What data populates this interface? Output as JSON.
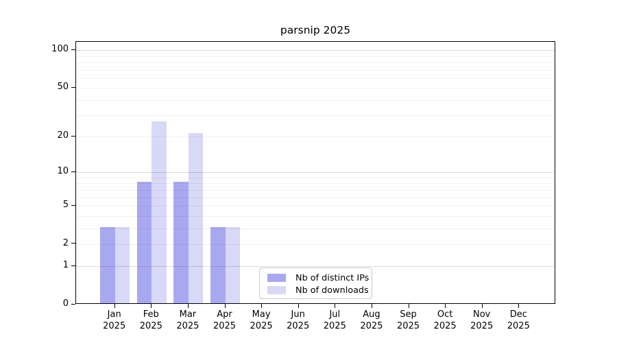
{
  "title": "parsnip 2025",
  "colors": {
    "distinct_ips": "#a8a8f1",
    "downloads": "#d8d8f7",
    "axis": "#000000",
    "legend_border": "#c8c8c8",
    "background": "#ffffff"
  },
  "chart_data": {
    "type": "bar",
    "title": "parsnip 2025",
    "categories": [
      "Jan",
      "Feb",
      "Mar",
      "Apr",
      "May",
      "Jun",
      "Jul",
      "Aug",
      "Sep",
      "Oct",
      "Nov",
      "Dec"
    ],
    "x_year_label": "2025",
    "series": [
      {
        "name": "Nb of distinct IPs",
        "color": "#a8a8f1",
        "values": [
          3,
          8,
          8,
          3,
          0,
          0,
          0,
          0,
          0,
          0,
          0,
          0
        ]
      },
      {
        "name": "Nb of downloads",
        "color": "#d8d8f7",
        "values": [
          3,
          26,
          21,
          3,
          0,
          0,
          0,
          0,
          0,
          0,
          0,
          0
        ]
      }
    ],
    "y_scale": "log10(1+v)",
    "y_ticks": [
      0,
      1,
      2,
      5,
      10,
      20,
      50,
      100
    ],
    "y_gridlines_minor": [
      2,
      3,
      4,
      5,
      6,
      7,
      8,
      9,
      20,
      30,
      40,
      50,
      60,
      70,
      80,
      90
    ],
    "y_gridlines_major": [
      1,
      10,
      100
    ],
    "ylim": [
      0,
      115
    ],
    "grid": "horizontal only",
    "legend_position": "lower center"
  },
  "legend": {
    "items": [
      {
        "label": "Nb of distinct IPs"
      },
      {
        "label": "Nb of downloads"
      }
    ]
  }
}
